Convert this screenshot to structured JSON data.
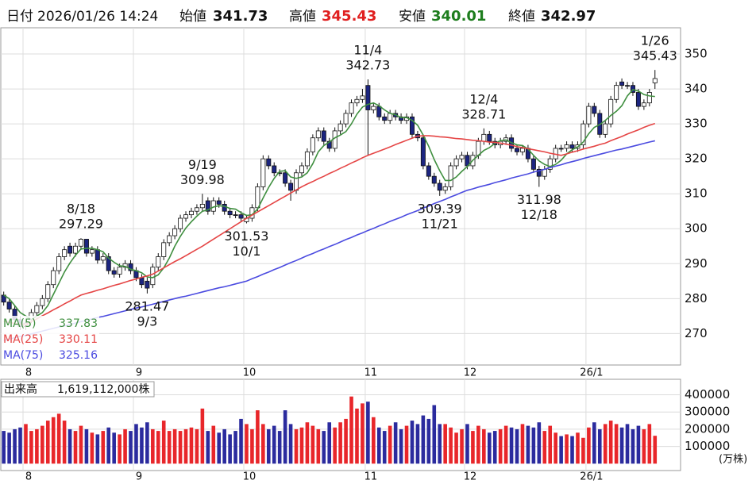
{
  "header": {
    "date_label": "日付",
    "date": "2026/01/26 14:24",
    "open_label": "始値",
    "high_label": "高値",
    "low_label": "安値",
    "close_label": "終値"
  },
  "chart_data": [
    {
      "type": "candlestick",
      "open": [
        281,
        279,
        277,
        274,
        272,
        274,
        276,
        278,
        280,
        284,
        288,
        292,
        295,
        293,
        295,
        297,
        293,
        294,
        291,
        292,
        288,
        287,
        289,
        290,
        288,
        286,
        285,
        284,
        289,
        292,
        296,
        298,
        300,
        303,
        304,
        305,
        306,
        308,
        305,
        308,
        307,
        305,
        304,
        304,
        302,
        303,
        306,
        312,
        320,
        318,
        316,
        316,
        313,
        311,
        316,
        318,
        322,
        326,
        328,
        325,
        323,
        328,
        330,
        333,
        336,
        337,
        341,
        334,
        335,
        332,
        331,
        333,
        332,
        331,
        332,
        327,
        326,
        318,
        315,
        313,
        311,
        312,
        318,
        320,
        321,
        318,
        321,
        325,
        327,
        325,
        324,
        325,
        326,
        323,
        322,
        323,
        320,
        317,
        315,
        317,
        320,
        323,
        323,
        324,
        323,
        324,
        330,
        335,
        333,
        327,
        330,
        337,
        342,
        341,
        341,
        339,
        335,
        336,
        341.73
      ],
      "high": [
        282,
        280,
        278,
        275,
        274,
        277,
        279,
        281,
        285,
        289,
        293,
        295,
        296,
        296,
        297.29,
        297,
        295,
        295,
        293,
        293,
        289,
        290,
        291,
        291,
        289,
        287,
        286,
        290,
        293,
        297,
        299,
        301,
        304,
        305,
        306,
        307,
        309.98,
        309,
        309,
        309,
        308,
        306,
        305,
        305,
        304,
        307,
        313,
        321,
        321,
        319,
        317,
        317,
        314,
        317,
        319,
        323,
        327,
        329,
        329,
        326,
        329,
        331,
        334,
        337,
        338,
        340,
        342.73,
        336,
        336,
        333,
        334,
        334,
        333,
        333,
        333,
        328,
        327,
        319,
        316,
        314,
        313,
        319,
        321,
        322,
        322,
        322,
        326,
        328.71,
        328,
        326,
        326,
        327,
        327,
        324,
        324,
        324,
        321,
        318,
        318,
        321,
        324,
        324,
        325,
        325,
        325,
        331,
        336,
        336,
        334,
        331,
        338,
        342,
        343,
        342,
        342,
        340,
        337,
        340,
        345.43
      ],
      "low": [
        278,
        276,
        273,
        271,
        271,
        273,
        275,
        277,
        279,
        283,
        287,
        291,
        292,
        292,
        294,
        292,
        292,
        290,
        290,
        287,
        286,
        286,
        288,
        287,
        285,
        283,
        281.47,
        283,
        288,
        291,
        295,
        297,
        299,
        302,
        303,
        304,
        305,
        304,
        304,
        306,
        304,
        303,
        303,
        302,
        301.53,
        302,
        305,
        311,
        317,
        315,
        315,
        312,
        308,
        310,
        315,
        317,
        321,
        325,
        324,
        322,
        322,
        327,
        329,
        332,
        335,
        336,
        321,
        333,
        331,
        330,
        330,
        331,
        330,
        330,
        326,
        325,
        317,
        314,
        312,
        309.39,
        310,
        311,
        317,
        319,
        317,
        317,
        320,
        324,
        324,
        323,
        323,
        324,
        322,
        321,
        321,
        319,
        316,
        311.98,
        314,
        316,
        319,
        322,
        322,
        322,
        322,
        323,
        329,
        332,
        326,
        326,
        329,
        336,
        340,
        340,
        338,
        334,
        334,
        335,
        340.01
      ],
      "close": [
        279,
        277,
        274,
        272,
        273,
        276,
        278,
        280,
        284,
        288,
        292,
        294,
        293,
        295,
        297,
        293,
        294,
        291,
        292,
        288,
        287,
        289,
        290,
        288,
        286,
        284,
        283,
        289,
        292,
        296,
        298,
        300,
        303,
        304,
        305,
        306,
        307,
        305,
        308,
        307,
        305,
        304,
        304,
        303,
        303,
        306,
        312,
        320,
        318,
        316,
        316,
        313,
        311,
        316,
        318,
        322,
        326,
        328,
        325,
        323,
        328,
        330,
        333,
        336,
        337,
        338,
        334,
        335,
        332,
        331,
        333,
        332,
        331,
        332,
        327,
        326,
        318,
        315,
        313,
        311,
        312,
        318,
        320,
        321,
        318,
        321,
        325,
        327,
        325,
        324,
        325,
        326,
        323,
        322,
        323,
        320,
        317,
        315,
        317,
        320,
        323,
        323,
        324,
        323,
        324,
        330,
        335,
        333,
        327,
        330,
        337,
        341,
        341,
        341,
        339,
        335,
        336,
        339,
        342.97
      ],
      "dates": [
        null,
        null,
        null,
        null,
        null,
        null,
        null,
        null,
        null,
        null,
        null,
        null,
        null,
        null,
        "8/18",
        null,
        null,
        null,
        null,
        null,
        null,
        null,
        null,
        null,
        null,
        null,
        "9/3",
        null,
        null,
        null,
        null,
        null,
        null,
        null,
        null,
        null,
        "9/19",
        null,
        null,
        null,
        null,
        null,
        null,
        null,
        "10/1",
        null,
        null,
        null,
        null,
        null,
        null,
        null,
        null,
        null,
        null,
        null,
        null,
        null,
        null,
        null,
        null,
        null,
        null,
        null,
        null,
        null,
        "11/4",
        null,
        null,
        null,
        null,
        null,
        null,
        null,
        null,
        null,
        null,
        null,
        null,
        "11/21",
        null,
        null,
        null,
        null,
        null,
        null,
        null,
        "12/4",
        null,
        null,
        null,
        null,
        null,
        null,
        null,
        null,
        null,
        "12/18",
        null,
        null,
        null,
        null,
        null,
        null,
        null,
        null,
        null,
        null,
        null,
        null,
        null,
        null,
        null,
        null,
        null,
        null,
        null,
        null,
        "1/26"
      ],
      "up_color": "#ffffff",
      "down_color": "#1c2580",
      "edge_color": "#111111",
      "series": [
        {
          "name": "MA(5)",
          "color": "#3f8f3f",
          "values": [
            281,
            280,
            278,
            276,
            275,
            274,
            275,
            276,
            278,
            281.2,
            284.4,
            287.6,
            290.2,
            292.4,
            294.2,
            294.4,
            294.4,
            294,
            293.4,
            291.6,
            290.4,
            289.4,
            289.2,
            288.4,
            288,
            287.4,
            286.2,
            286,
            286.8,
            288.8,
            291.6,
            295,
            297.8,
            300.2,
            302,
            303.6,
            305,
            305.4,
            306.2,
            306.6,
            306.4,
            305.8,
            305.6,
            304.6,
            303.8,
            304,
            305.6,
            308.8,
            311.8,
            314.4,
            316.4,
            316.6,
            314.8,
            314.4,
            314.8,
            316,
            318.6,
            322,
            323.8,
            324.8,
            326,
            326.8,
            327.8,
            330,
            332.8,
            334.8,
            335.6,
            336,
            335.2,
            334,
            333,
            332.6,
            331.8,
            331.8,
            331,
            329.6,
            326.8,
            323.6,
            319.8,
            316.6,
            313.8,
            313.8,
            314.8,
            316.4,
            317.8,
            319.6,
            321,
            322.4,
            323.2,
            324.4,
            325.2,
            325.4,
            324.6,
            324,
            323.8,
            322.8,
            321,
            319.4,
            318.4,
            317.8,
            318.4,
            319.6,
            321.4,
            322.6,
            323.4,
            324.8,
            327.2,
            329,
            329.8,
            331,
            332.4,
            333.6,
            335.2,
            338,
            339.8,
            339.4,
            338.4,
            338,
            337.83
          ]
        },
        {
          "name": "MA(25)",
          "color": "#e54545",
          "values": [
            273.5,
            273.2,
            272.9,
            272.7,
            272.5,
            273.4,
            274.2,
            275.1,
            275.9,
            276.8,
            277.6,
            278.5,
            279.3,
            280.2,
            281.0,
            281.5,
            281.9,
            282.4,
            282.8,
            283.3,
            283.8,
            284.2,
            284.7,
            285.2,
            285.6,
            286.1,
            286.5,
            287.0,
            287.9,
            288.8,
            289.7,
            290.6,
            291.4,
            292.3,
            293.2,
            294.1,
            295.0,
            296,
            297,
            298,
            299,
            300,
            301,
            302,
            303,
            303.9,
            304.8,
            305.7,
            306.6,
            307.5,
            308.4,
            309.3,
            310.2,
            311.1,
            312.0,
            312.8,
            313.5,
            314.3,
            315.0,
            315.8,
            316.5,
            317.3,
            318.0,
            318.8,
            319.5,
            320.3,
            321.0,
            321.6,
            322.2,
            322.8,
            323.4,
            324.1,
            324.7,
            325.3,
            325.9,
            326.5,
            326.6,
            326.6,
            326.5,
            326.3,
            326.2,
            326.0,
            325.8,
            325.7,
            325.5,
            325.3,
            325.2,
            325.0,
            324.8,
            324.7,
            324.5,
            324.2,
            323.9,
            323.5,
            323.2,
            322.9,
            322.6,
            322.3,
            322.0,
            321.6,
            321.3,
            321.0,
            321.4,
            321.9,
            322.3,
            322.8,
            323.2,
            323.6,
            324.1,
            324.5,
            325.2,
            325.8,
            326.4,
            327.1,
            327.7,
            328.3,
            329.0,
            329.6,
            330.11
          ]
        },
        {
          "name": "MA(75)",
          "color": "#4b4be0",
          "values": [
            268.0,
            268.4,
            268.8,
            269.2,
            269.5,
            269.9,
            270.3,
            270.7,
            271.1,
            271.5,
            271.9,
            272.2,
            272.6,
            273.0,
            273.4,
            273.8,
            274.2,
            274.6,
            274.9,
            275.3,
            275.7,
            276.1,
            276.5,
            276.9,
            277.3,
            277.6,
            278.0,
            278.4,
            278.8,
            279.2,
            279.6,
            280.0,
            280.4,
            280.7,
            281.1,
            281.5,
            281.9,
            282.3,
            282.7,
            283.1,
            283.4,
            283.8,
            284.2,
            284.6,
            285.0,
            285.7,
            286.3,
            287.0,
            287.6,
            288.3,
            288.9,
            289.6,
            290.3,
            290.9,
            291.6,
            292.3,
            292.9,
            293.6,
            294.2,
            294.9,
            295.5,
            296.2,
            296.9,
            297.5,
            298.2,
            298.8,
            299.5,
            300.1,
            300.8,
            301.4,
            302.1,
            302.7,
            303.3,
            304.0,
            304.6,
            305.2,
            305.9,
            306.5,
            307.2,
            307.8,
            308.4,
            309.1,
            309.7,
            310.4,
            311.0,
            311.4,
            311.9,
            312.3,
            312.7,
            313.2,
            313.6,
            314.0,
            314.5,
            314.9,
            315.3,
            315.7,
            316.2,
            316.6,
            317.0,
            317.5,
            317.9,
            318.3,
            318.8,
            319.2,
            319.6,
            320.1,
            320.5,
            320.9,
            321.3,
            321.7,
            322.1,
            322.5,
            322.8,
            323.2,
            323.6,
            324.0,
            324.4,
            324.8,
            325.16
          ]
        }
      ],
      "ylim": [
        261,
        357.5
      ],
      "yticks": [
        270,
        280,
        290,
        300,
        310,
        320,
        330,
        340,
        350
      ],
      "xticks": [
        {
          "value": 4,
          "label": "8"
        },
        {
          "value": 24,
          "label": "9"
        },
        {
          "value": 44,
          "label": "10"
        },
        {
          "value": 66,
          "label": "11"
        },
        {
          "value": 84,
          "label": "12"
        },
        {
          "value": 106,
          "label": "26/1"
        }
      ],
      "grid": true
    },
    {
      "type": "bar",
      "title": "出来高",
      "total_label": "1,619,112,000株",
      "unit_label": "(万株)",
      "values": [
        190000,
        180000,
        200000,
        210000,
        230000,
        190000,
        200000,
        220000,
        250000,
        270000,
        290000,
        250000,
        200000,
        190000,
        220000,
        200000,
        180000,
        170000,
        190000,
        210000,
        180000,
        170000,
        200000,
        190000,
        230000,
        210000,
        240000,
        200000,
        190000,
        250000,
        190000,
        200000,
        190000,
        200000,
        210000,
        200000,
        320000,
        190000,
        220000,
        180000,
        200000,
        170000,
        190000,
        260000,
        230000,
        200000,
        310000,
        230000,
        200000,
        220000,
        190000,
        310000,
        230000,
        200000,
        210000,
        240000,
        220000,
        200000,
        190000,
        240000,
        210000,
        240000,
        260000,
        390000,
        320000,
        350000,
        360000,
        270000,
        210000,
        190000,
        220000,
        240000,
        200000,
        220000,
        250000,
        230000,
        280000,
        260000,
        340000,
        230000,
        230000,
        210000,
        180000,
        200000,
        230000,
        190000,
        220000,
        200000,
        180000,
        190000,
        200000,
        220000,
        210000,
        200000,
        230000,
        220000,
        210000,
        240000,
        190000,
        220000,
        180000,
        160000,
        170000,
        160000,
        180000,
        150000,
        210000,
        240000,
        200000,
        230000,
        250000,
        230000,
        210000,
        230000,
        200000,
        220000,
        200000,
        230000,
        161911.2
      ],
      "up_color": "#e8262a",
      "down_color": "#2b2b9e",
      "ylim": [
        -40000,
        490000
      ],
      "yticks": [
        100000,
        200000,
        300000,
        400000
      ],
      "xticks": [
        {
          "value": 4,
          "label": "8"
        },
        {
          "value": 24,
          "label": "9"
        },
        {
          "value": 44,
          "label": "10"
        },
        {
          "value": 66,
          "label": "11"
        },
        {
          "value": 84,
          "label": "12"
        },
        {
          "value": 106,
          "label": "26/1"
        }
      ],
      "grid": true
    }
  ]
}
